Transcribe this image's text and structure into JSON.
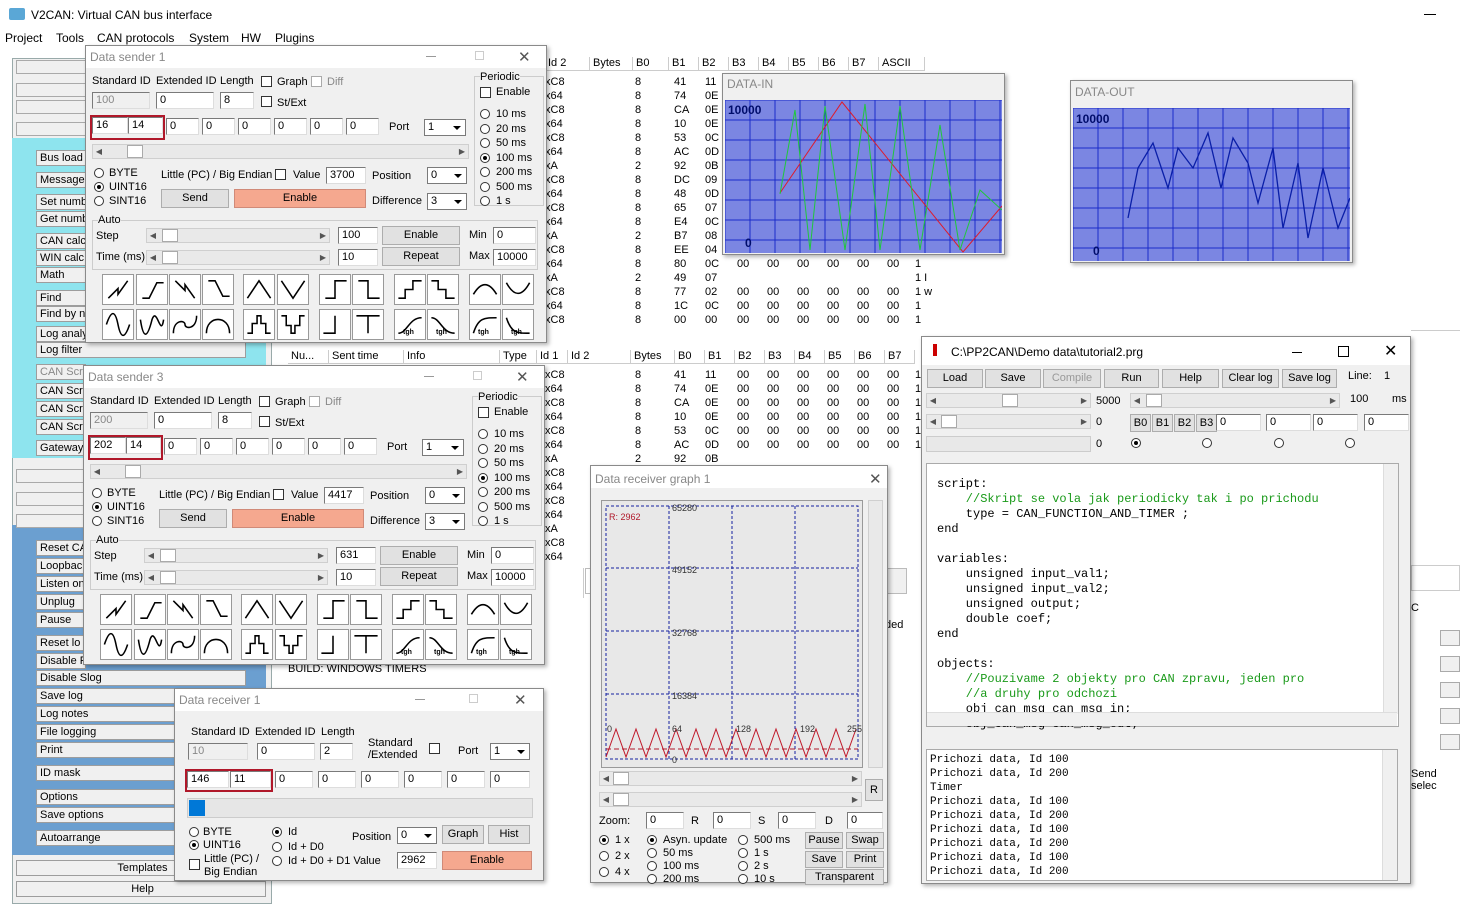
{
  "app": {
    "title": "V2CAN: Virtual CAN bus interface"
  },
  "menu": [
    "Project",
    "Tools",
    "CAN protocols",
    "System",
    "HW",
    "Plugins"
  ],
  "left_panel": {
    "buttons": [
      "Bus load",
      "Message",
      "Set numb",
      "Get numb",
      "CAN calc",
      "WIN calc",
      "Math",
      "Find",
      "Find by n",
      "Log analy",
      "Log filter",
      "CAN Scri",
      "CAN Scri",
      "CAN Scri",
      "CAN Scri",
      "Gateway"
    ],
    "buttons2": [
      "Reset CA",
      "Loopback",
      "Listen on",
      "Unplug",
      "Pause",
      "Reset lo",
      "Disable R",
      "Disable Slog",
      "Save log",
      "Log notes",
      "File logging",
      "Print",
      "ID mask",
      "Options",
      "Save options",
      "Autoarrange",
      "Templates",
      "Help"
    ]
  },
  "table1": {
    "headers": [
      "Id 2",
      "Bytes",
      "B0",
      "B1",
      "B2",
      "B3",
      "B4",
      "B5",
      "B6",
      "B7",
      "ASCII"
    ],
    "rows": [
      [
        "xC8",
        "8",
        "41",
        "11"
      ],
      [
        "x64",
        "8",
        "74",
        "0E"
      ],
      [
        "xC8",
        "8",
        "CA",
        "0E"
      ],
      [
        "x64",
        "8",
        "10",
        "0E"
      ],
      [
        "xC8",
        "8",
        "53",
        "0C"
      ],
      [
        "x64",
        "8",
        "AC",
        "0D"
      ],
      [
        "xA",
        "2",
        "92",
        "0B"
      ],
      [
        "xC8",
        "8",
        "DC",
        "09"
      ],
      [
        "x64",
        "8",
        "48",
        "0D"
      ],
      [
        "xC8",
        "8",
        "65",
        "07"
      ],
      [
        "x64",
        "8",
        "E4",
        "0C"
      ],
      [
        "xA",
        "2",
        "B7",
        "08"
      ],
      [
        "xC8",
        "8",
        "EE",
        "04"
      ],
      [
        "x64",
        "8",
        "80",
        "0C",
        "00",
        "00",
        "00",
        "00",
        "00",
        "00",
        "1"
      ],
      [
        "xA",
        "2",
        "49",
        "07",
        "",
        "",
        "",
        "",
        "",
        "",
        "1 I"
      ],
      [
        "xC8",
        "8",
        "77",
        "02",
        "00",
        "00",
        "00",
        "00",
        "00",
        "00",
        "1 w"
      ],
      [
        "x64",
        "8",
        "1C",
        "0C",
        "00",
        "00",
        "00",
        "00",
        "00",
        "00",
        "1"
      ],
      [
        "xC8",
        "8",
        "00",
        "00",
        "00",
        "00",
        "00",
        "00",
        "00",
        "00",
        "1"
      ]
    ]
  },
  "table2": {
    "headers": [
      "Nu...",
      "Sent time",
      "Info",
      "Type",
      "Id 1",
      "Id 2",
      "Bytes",
      "B0",
      "B1",
      "B2",
      "B3",
      "B4",
      "B5",
      "B6",
      "B7"
    ],
    "rows": [
      [
        "xC8",
        "8",
        "41",
        "11",
        "00",
        "00",
        "00",
        "00",
        "00",
        "00",
        "1"
      ],
      [
        "x64",
        "8",
        "74",
        "0E",
        "00",
        "00",
        "00",
        "00",
        "00",
        "00",
        "1"
      ],
      [
        "xC8",
        "8",
        "CA",
        "0E",
        "00",
        "00",
        "00",
        "00",
        "00",
        "00",
        "1"
      ],
      [
        "x64",
        "8",
        "10",
        "0E",
        "00",
        "00",
        "00",
        "00",
        "00",
        "00",
        "1"
      ],
      [
        "xC8",
        "8",
        "53",
        "0C",
        "00",
        "00",
        "00",
        "00",
        "00",
        "00",
        "1"
      ],
      [
        "x64",
        "8",
        "AC",
        "0D",
        "00",
        "00",
        "00",
        "00",
        "00",
        "00",
        "1"
      ],
      [
        "xA",
        "2",
        "92",
        "0B"
      ],
      [
        "xC8"
      ],
      [
        "x64"
      ],
      [
        "xC8"
      ],
      [
        "x64"
      ],
      [
        "xA"
      ],
      [
        "xC8"
      ],
      [
        "x64"
      ]
    ]
  },
  "build_text": "BUILD: WINDOWS TIMERS",
  "partial": {
    "c1": "C",
    "c2": "C",
    "ded": "ded",
    "d0": "0",
    "send_sel": "Send selec"
  },
  "data_in": {
    "title": "DATA-IN",
    "top": "10000",
    "bottom": "0"
  },
  "data_out": {
    "title": "DATA-OUT",
    "top": "10000",
    "bottom": "0"
  },
  "sender1": {
    "title": "Data sender 1",
    "std_id": "Standard ID",
    "ext_id": "Extended ID",
    "length": "Length",
    "graph": "Graph",
    "diff": "Diff",
    "stext": "St/Ext",
    "id_val": "100",
    "ext_val": "0",
    "len_val": "8",
    "b0": "16",
    "b1": "14",
    "bytes": [
      "0",
      "0",
      "0",
      "0",
      "0",
      "0"
    ],
    "port_lbl": "Port",
    "port": "1",
    "periodic": "Periodic",
    "enable_lbl": "Enable",
    "periods": [
      "10 ms",
      "20 ms",
      "50 ms",
      "100 ms",
      "200 ms",
      "500 ms",
      "1 s"
    ],
    "byte": "BYTE",
    "uint16": "UINT16",
    "sint16": "SINT16",
    "endian": "Little (PC) / Big Endian",
    "value_lbl": "Value",
    "value": "3700",
    "position_lbl": "Position",
    "position": "0",
    "difference_lbl": "Difference",
    "difference": "3",
    "send": "Send",
    "enable": "Enable",
    "auto": "Auto",
    "step": "Step",
    "time": "Time (ms)",
    "step_val": "100",
    "time_val": "10",
    "enable2": "Enable",
    "repeat": "Repeat",
    "min": "Min",
    "max": "Max",
    "min_val": "0",
    "max_val": "10000",
    "tgh": "tgh"
  },
  "sender3": {
    "title": "Data sender 3",
    "std_id": "Standard ID",
    "ext_id": "Extended ID",
    "length": "Length",
    "graph": "Graph",
    "diff": "Diff",
    "stext": "St/Ext",
    "id_val": "200",
    "ext_val": "0",
    "len_val": "8",
    "b0": "202",
    "b1": "14",
    "bytes": [
      "0",
      "0",
      "0",
      "0",
      "0",
      "0"
    ],
    "port_lbl": "Port",
    "port": "1",
    "periodic": "Periodic",
    "enable_lbl": "Enable",
    "periods": [
      "10 ms",
      "20 ms",
      "50 ms",
      "100 ms",
      "200 ms",
      "500 ms",
      "1 s"
    ],
    "byte": "BYTE",
    "uint16": "UINT16",
    "sint16": "SINT16",
    "endian": "Little (PC) / Big Endian",
    "value_lbl": "Value",
    "value": "4417",
    "position_lbl": "Position",
    "position": "0",
    "difference_lbl": "Difference",
    "difference": "3",
    "send": "Send",
    "enable": "Enable",
    "auto": "Auto",
    "step": "Step",
    "time": "Time (ms)",
    "step_val": "631",
    "time_val": "10",
    "enable2": "Enable",
    "repeat": "Repeat",
    "min": "Min",
    "max": "Max",
    "min_val": "0",
    "max_val": "10000",
    "tgh": "tgh"
  },
  "receiver1": {
    "title": "Data receiver 1",
    "std_id": "Standard ID",
    "ext_id": "Extended ID",
    "length": "Length",
    "std_ext": "Standard /Extended",
    "port_lbl": "Port",
    "port": "1",
    "id_val": "10",
    "ext_val": "0",
    "len_val": "2",
    "b0": "146",
    "b1": "11",
    "bytes": [
      "0",
      "0",
      "0",
      "0",
      "0",
      "0"
    ],
    "byte": "BYTE",
    "uint16": "UINT16",
    "endian": "Little (PC) / Big Endian",
    "id": "Id",
    "idd0": "Id + D0",
    "idd0d1": "Id + D0 + D1 Value",
    "position_lbl": "Position",
    "position": "0",
    "graph": "Graph",
    "hist": "Hist",
    "value": "2962",
    "enable": "Enable"
  },
  "graph1": {
    "title": "Data receiver graph 1",
    "r_label": "R: 2962",
    "ylabels": [
      "65280",
      "49152",
      "32768",
      "16384",
      "0"
    ],
    "xlabels": [
      "0",
      "64",
      "128",
      "192",
      "255"
    ],
    "zoom": "Zoom:",
    "zoom_val": "0",
    "r": "R",
    "r_val": "0",
    "s": "S",
    "s_val": "0",
    "d": "D",
    "d_val": "0",
    "zooms": [
      "1 x",
      "2 x",
      "4 x"
    ],
    "asyn": "Asyn. update",
    "rates": [
      "50 ms",
      "100 ms",
      "200 ms"
    ],
    "rates2": [
      "500 ms",
      "1 s",
      "2 s",
      "10 s"
    ],
    "pause": "Pause",
    "swap": "Swap",
    "save": "Save",
    "print": "Print",
    "transparent": "Transparent",
    "rbtn": "R"
  },
  "script": {
    "title": "C:\\PP2CAN\\Demo data\\tutorial2.prg",
    "buttons": [
      "Load",
      "Save",
      "Compile",
      "Run",
      "Help",
      "Clear log",
      "Save log"
    ],
    "line_lbl": "Line:",
    "line": "1",
    "slider1": "5000",
    "slider2": "100",
    "ms": "ms",
    "zero": "0",
    "bbtns": [
      "B0",
      "B1",
      "B2",
      "B3"
    ],
    "bvals": [
      "0",
      "0",
      "0",
      "0"
    ],
    "code": [
      {
        "t": "script:",
        "c": "k"
      },
      {
        "t": "    //Skript se vola jak periodicky tak i po prichodu",
        "c": "g"
      },
      {
        "t": "    type = CAN_FUNCTION_AND_TIMER ;",
        "c": "k"
      },
      {
        "t": "end",
        "c": "k"
      },
      {
        "t": "",
        "c": "k"
      },
      {
        "t": "variables:",
        "c": "k"
      },
      {
        "t": "    unsigned input_val1;",
        "c": "k"
      },
      {
        "t": "    unsigned input_val2;",
        "c": "k"
      },
      {
        "t": "    unsigned output;",
        "c": "k"
      },
      {
        "t": "    double coef;",
        "c": "k"
      },
      {
        "t": "end",
        "c": "k"
      },
      {
        "t": "",
        "c": "k"
      },
      {
        "t": "objects:",
        "c": "k"
      },
      {
        "t": "    //Pouzivame 2 objekty pro CAN zpravu, jeden pro",
        "c": "g"
      },
      {
        "t": "    //a druhy pro odchozi",
        "c": "g"
      },
      {
        "t": "    obj_can_msg can_msg_in;",
        "c": "k"
      },
      {
        "t": "    obj_can_msg can_msg_out;",
        "c": "k"
      }
    ],
    "log": [
      "Prichozi data, Id 100",
      "Prichozi data, Id 200",
      "Timer",
      "Prichozi data, Id 100",
      "Prichozi data, Id 200",
      "Prichozi data, Id 100",
      "Prichozi data, Id 200",
      "Prichozi data, Id 100",
      "Prichozi data, Id 200"
    ]
  },
  "colors": {
    "accent_cyan": "#8ee4ee",
    "accent_blue": "#6b9fd0",
    "graph_blue": "#7b86e2",
    "salmon": "#f5a88f",
    "red": "#b0182a"
  }
}
